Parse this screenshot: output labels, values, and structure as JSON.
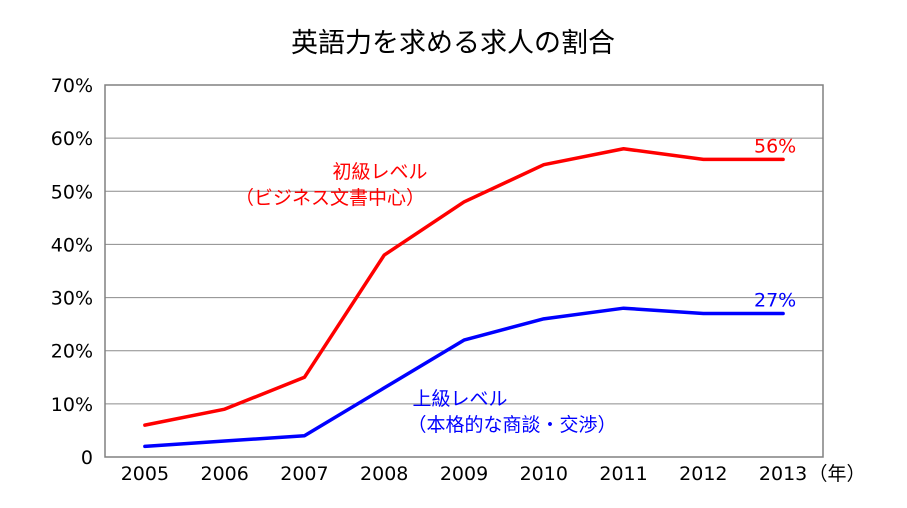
{
  "chart_data": {
    "type": "line",
    "title": "英語力を求める求人の割合",
    "xlabel": "",
    "ylabel": "",
    "x_unit": "（年）",
    "categories": [
      "2005",
      "2006",
      "2007",
      "2008",
      "2009",
      "2010",
      "2011",
      "2012",
      "2013"
    ],
    "y_ticks": [
      "0",
      "10%",
      "20%",
      "30%",
      "40%",
      "50%",
      "60%",
      "70%"
    ],
    "ylim": [
      0,
      70
    ],
    "grid": true,
    "series": [
      {
        "label_line1": "初級レベル",
        "label_line2": "（ビジネス文書中心）",
        "color": "#ff0000",
        "values": [
          6,
          9,
          15,
          38,
          48,
          55,
          58,
          56,
          56
        ],
        "end_label": "56%"
      },
      {
        "label_line1": "上級レベル",
        "label_line2": "（本格的な商談・交渉）",
        "color": "#0000ff",
        "values": [
          2,
          3,
          4,
          13,
          22,
          26,
          28,
          27,
          27
        ],
        "end_label": "27%"
      }
    ]
  }
}
